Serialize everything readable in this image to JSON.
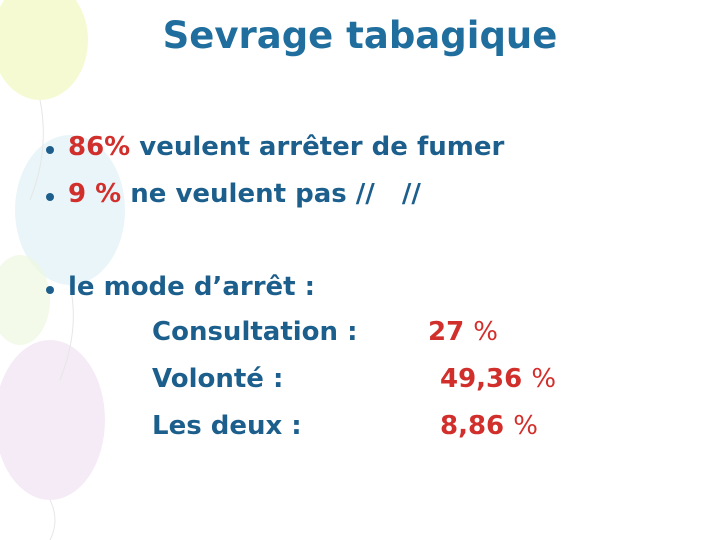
{
  "title": "Sevrage tabagique",
  "bullets": [
    {
      "highlight": "86%",
      "text": "veulent arrêter de fumer"
    },
    {
      "highlight": "9 %",
      "text": "ne veulent pas //   //"
    }
  ],
  "mode": {
    "heading": "le mode d’arrêt :",
    "rows": [
      {
        "label": "Consultation :",
        "value": "27",
        "unit": "%"
      },
      {
        "label": "Volonté :",
        "value": "49,36",
        "unit": "%"
      },
      {
        "label": "Les deux :",
        "value": "8,86",
        "unit": "%"
      }
    ]
  }
}
